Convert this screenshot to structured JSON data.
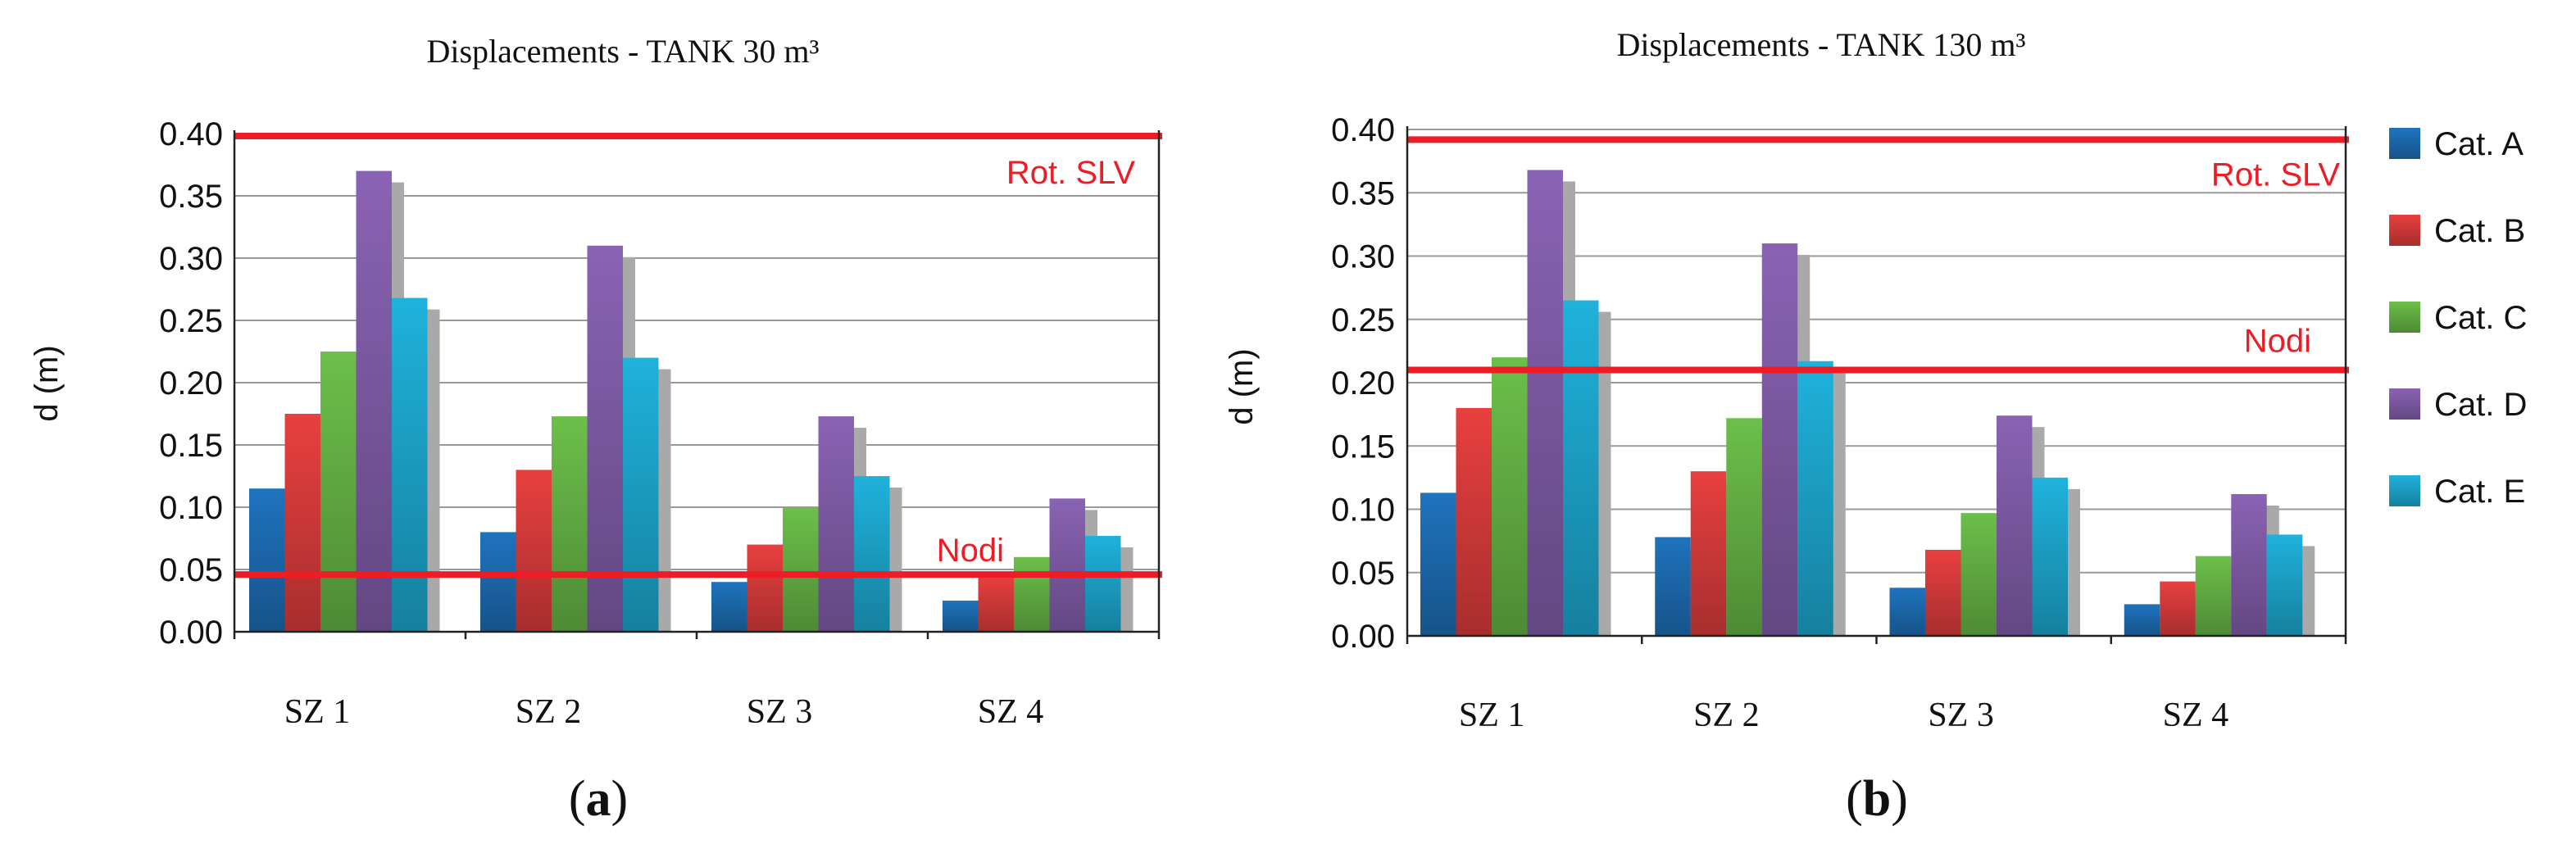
{
  "chart_data": [
    {
      "type": "bar",
      "title": "Displacements - TANK 30 m³",
      "panel_label": "a",
      "xlabel": "",
      "ylabel": "d (m)",
      "ylim": [
        0,
        0.4
      ],
      "yticks": [
        "0.00",
        "0.05",
        "0.10",
        "0.15",
        "0.20",
        "0.25",
        "0.30",
        "0.35",
        "0.40"
      ],
      "categories": [
        "SZ 1",
        "SZ 2",
        "SZ 3",
        "SZ 4"
      ],
      "series": [
        {
          "name": "Cat. A",
          "color": "#1f73be",
          "values": [
            0.115,
            0.08,
            0.04,
            0.025
          ]
        },
        {
          "name": "Cat. B",
          "color": "#e8403f",
          "values": [
            0.175,
            0.13,
            0.07,
            0.045
          ]
        },
        {
          "name": "Cat. C",
          "color": "#6cbf4a",
          "values": [
            0.225,
            0.173,
            0.1,
            0.06
          ]
        },
        {
          "name": "Cat. D",
          "color": "#8a63b4",
          "values": [
            0.37,
            0.31,
            0.173,
            0.107
          ]
        },
        {
          "name": "Cat. E",
          "color": "#1fb2dc",
          "values": [
            0.268,
            0.22,
            0.125,
            0.077
          ]
        }
      ],
      "reference_lines": [
        {
          "label": "Rot. SLV",
          "value": 0.398,
          "color": "#ee1c25"
        },
        {
          "label": "Nodi",
          "value": 0.046,
          "color": "#ee1c25"
        }
      ]
    },
    {
      "type": "bar",
      "title": "Displacements - TANK 130 m³",
      "panel_label": "b",
      "xlabel": "",
      "ylabel": "d (m)",
      "ylim": [
        0,
        0.4
      ],
      "yticks": [
        "0.00",
        "0.05",
        "0.10",
        "0.15",
        "0.20",
        "0.25",
        "0.30",
        "0.35",
        "0.40"
      ],
      "categories": [
        "SZ 1",
        "SZ 2",
        "SZ 3",
        "SZ 4"
      ],
      "series": [
        {
          "name": "Cat. A",
          "color": "#1f73be",
          "values": [
            0.113,
            0.078,
            0.038,
            0.025
          ]
        },
        {
          "name": "Cat. B",
          "color": "#e8403f",
          "values": [
            0.18,
            0.13,
            0.068,
            0.043
          ]
        },
        {
          "name": "Cat. C",
          "color": "#6cbf4a",
          "values": [
            0.22,
            0.172,
            0.097,
            0.063
          ]
        },
        {
          "name": "Cat. D",
          "color": "#8a63b4",
          "values": [
            0.368,
            0.31,
            0.174,
            0.112
          ]
        },
        {
          "name": "Cat. E",
          "color": "#1fb2dc",
          "values": [
            0.265,
            0.217,
            0.125,
            0.08
          ]
        }
      ],
      "reference_lines": [
        {
          "label": "Rot. SLV",
          "value": 0.392,
          "color": "#ee1c25"
        },
        {
          "label": "Nodi",
          "value": 0.21,
          "color": "#ee1c25"
        }
      ]
    }
  ],
  "legend": [
    {
      "label": "Cat. A",
      "color": "#1f73be"
    },
    {
      "label": "Cat. B",
      "color": "#e8403f"
    },
    {
      "label": "Cat. C",
      "color": "#6cbf4a"
    },
    {
      "label": "Cat. D",
      "color": "#8a63b4"
    },
    {
      "label": "Cat. E",
      "color": "#1fb2dc"
    }
  ],
  "colors": {
    "reference_line": "#ee1c25",
    "grid": "#9a9a9a",
    "shadow": "#a9a9a9"
  }
}
